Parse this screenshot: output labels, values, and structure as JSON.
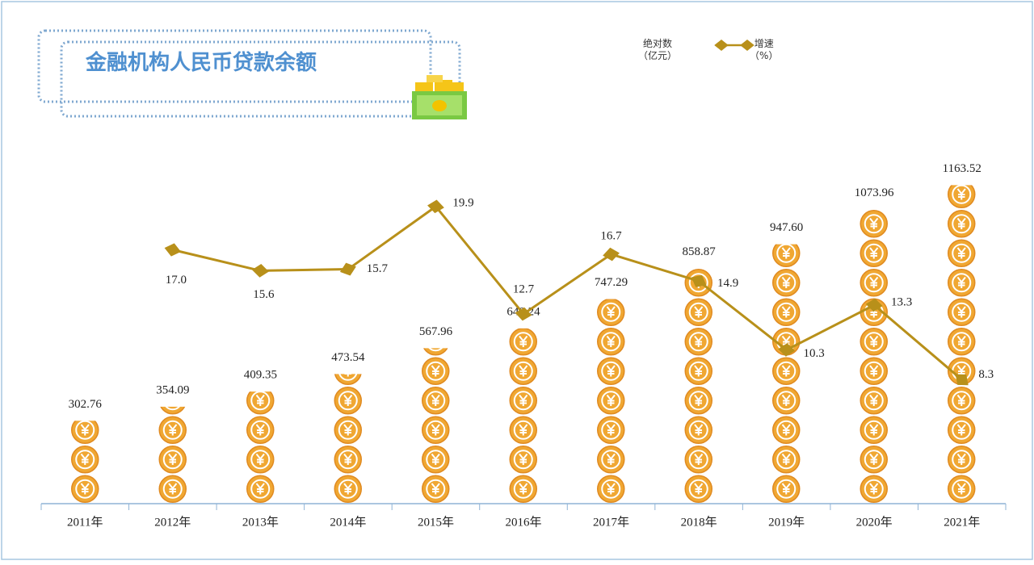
{
  "chart_data": {
    "type": "bar",
    "title": "金融机构人民币贷款余额",
    "categories": [
      "2011年",
      "2012年",
      "2013年",
      "2014年",
      "2015年",
      "2016年",
      "2017年",
      "2018年",
      "2019年",
      "2020年",
      "2021年"
    ],
    "series": [
      {
        "name": "绝对数\n（亿元）",
        "color": "#f0a732",
        "values": [
          302.76,
          354.09,
          409.35,
          473.54,
          567.96,
          640.24,
          747.29,
          858.87,
          947.6,
          1073.96,
          1163.52
        ],
        "value_labels": [
          "302.76",
          "354.09",
          "409.35",
          "473.54",
          "567.96",
          "640.24",
          "747.29",
          "858.87",
          "947.60",
          "1073.96",
          "1163.52"
        ]
      },
      {
        "name": "增速\n（%）",
        "type": "line",
        "axis": "y2",
        "color": "#b8901a",
        "values": [
          null,
          17.0,
          15.6,
          15.7,
          19.9,
          12.7,
          16.7,
          14.9,
          10.3,
          13.3,
          8.3
        ],
        "value_labels": [
          null,
          "17.0",
          "15.6",
          "15.7",
          "19.9",
          "12.7",
          "16.7",
          "14.9",
          "10.3",
          "13.3",
          "8.3"
        ]
      }
    ],
    "ylim": [
      0,
      1200
    ],
    "y2lim": [
      0,
      22
    ]
  }
}
